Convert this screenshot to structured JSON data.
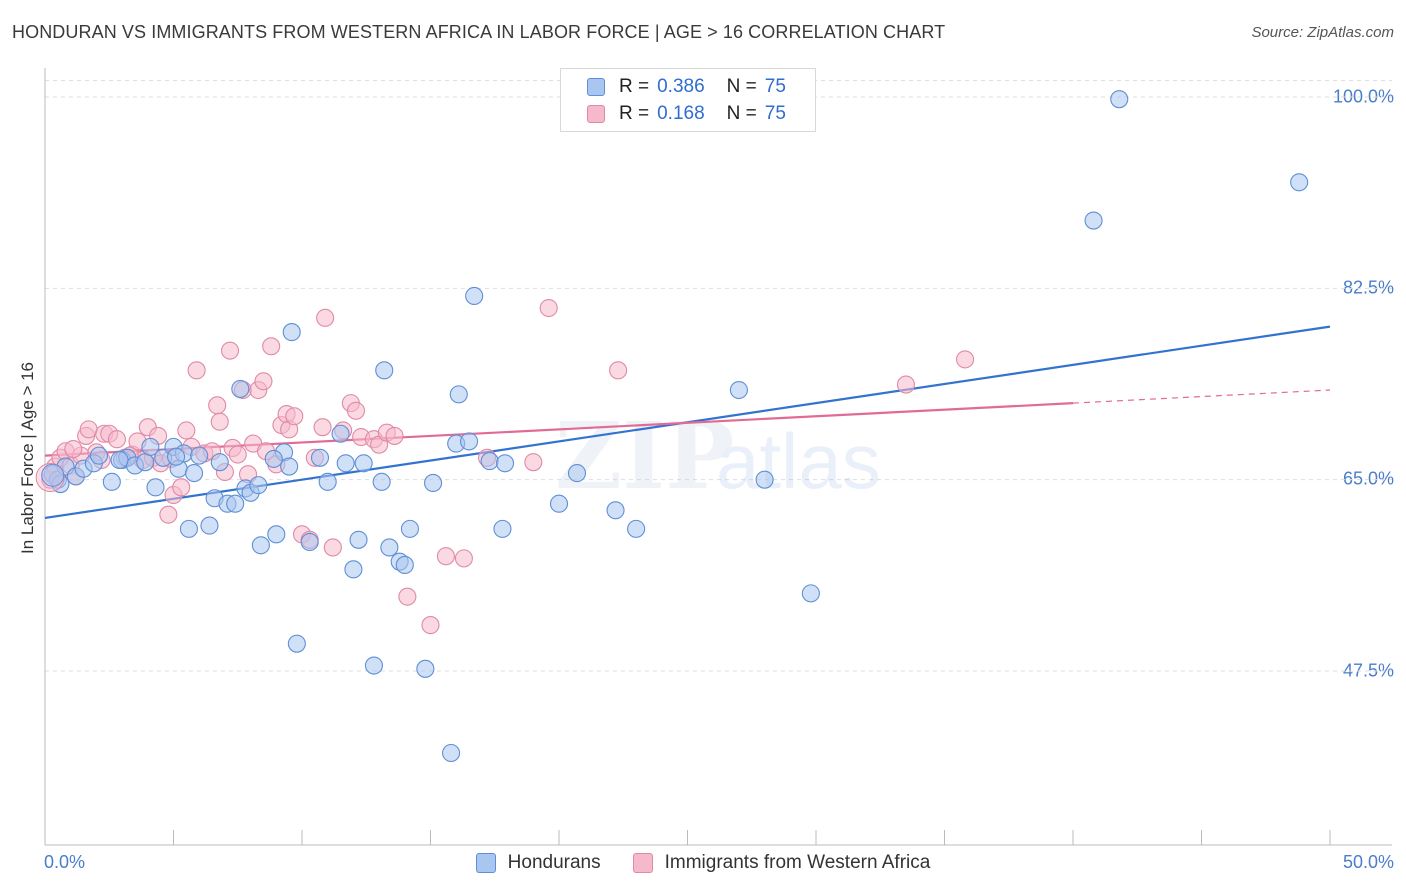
{
  "title": "HONDURAN VS IMMIGRANTS FROM WESTERN AFRICA IN LABOR FORCE | AGE > 16 CORRELATION CHART",
  "source": "Source: ZipAtlas.com",
  "watermark": {
    "zip": "ZIP",
    "atlas": "atlas"
  },
  "colors": {
    "blue_fill": "#a9c6f0",
    "blue_stroke": "#5f8fd6",
    "blue_line": "#3373d0",
    "pink_fill": "#f6b9cc",
    "pink_stroke": "#e08aa6",
    "pink_line": "#e26b96",
    "tick_text": "#4a7dcc",
    "grid": "#dddddd"
  },
  "legend": {
    "rows": [
      {
        "r_label": "R =",
        "r_value": "0.386",
        "n_label": "N =",
        "n_value": "75"
      },
      {
        "r_label": "R =",
        "r_value": "0.168",
        "n_label": "N =",
        "n_value": "75"
      }
    ]
  },
  "chart_data": {
    "type": "scatter",
    "title": "HONDURAN VS IMMIGRANTS FROM WESTERN AFRICA IN LABOR FORCE | AGE > 16 CORRELATION CHART",
    "xlabel": "",
    "ylabel": "In Labor Force | Age > 16",
    "xlim": [
      0,
      50
    ],
    "ylim": [
      34,
      103
    ],
    "x_tick_labels": [
      "0.0%",
      "50.0%"
    ],
    "y_ticks": [
      47.5,
      65.0,
      82.5,
      100.0
    ],
    "y_tick_labels": [
      "47.5%",
      "65.0%",
      "82.5%",
      "100.0%"
    ],
    "legend_position": "top-center",
    "series": [
      {
        "name": "Hondurans",
        "r": 0.386,
        "n": 75,
        "trend": {
          "x0": 0,
          "y0": 61.5,
          "x1": 50,
          "y1": 79.0
        },
        "points": [
          [
            0.3,
            65.5
          ],
          [
            0.5,
            65.0
          ],
          [
            0.6,
            64.6
          ],
          [
            0.8,
            66.2
          ],
          [
            1.2,
            65.3
          ],
          [
            1.5,
            66.0
          ],
          [
            1.9,
            66.5
          ],
          [
            2.1,
            67.2
          ],
          [
            2.6,
            64.8
          ],
          [
            3.0,
            66.8
          ],
          [
            3.2,
            67.0
          ],
          [
            3.5,
            66.3
          ],
          [
            3.9,
            66.6
          ],
          [
            4.1,
            68.0
          ],
          [
            4.3,
            64.3
          ],
          [
            4.6,
            67.0
          ],
          [
            5.0,
            68.0
          ],
          [
            5.2,
            66.0
          ],
          [
            5.4,
            67.4
          ],
          [
            5.6,
            60.5
          ],
          [
            5.8,
            65.6
          ],
          [
            6.0,
            67.2
          ],
          [
            6.4,
            60.8
          ],
          [
            6.6,
            63.3
          ],
          [
            6.8,
            66.6
          ],
          [
            7.1,
            62.8
          ],
          [
            7.4,
            62.8
          ],
          [
            7.6,
            73.3
          ],
          [
            7.8,
            64.2
          ],
          [
            8.0,
            63.8
          ],
          [
            8.3,
            64.5
          ],
          [
            8.4,
            59.0
          ],
          [
            9.0,
            60.0
          ],
          [
            9.3,
            67.5
          ],
          [
            9.5,
            66.2
          ],
          [
            9.6,
            78.5
          ],
          [
            9.8,
            50.0
          ],
          [
            10.3,
            59.3
          ],
          [
            10.7,
            67.0
          ],
          [
            11.0,
            64.8
          ],
          [
            11.5,
            69.2
          ],
          [
            11.7,
            66.5
          ],
          [
            12.0,
            56.8
          ],
          [
            12.2,
            59.5
          ],
          [
            12.4,
            66.5
          ],
          [
            12.8,
            48.0
          ],
          [
            13.1,
            64.8
          ],
          [
            13.2,
            75.0
          ],
          [
            13.4,
            58.8
          ],
          [
            13.8,
            57.5
          ],
          [
            14.0,
            57.2
          ],
          [
            14.2,
            60.5
          ],
          [
            14.8,
            47.7
          ],
          [
            15.1,
            64.7
          ],
          [
            15.8,
            40.0
          ],
          [
            16.0,
            68.3
          ],
          [
            16.1,
            72.8
          ],
          [
            16.5,
            68.5
          ],
          [
            16.7,
            81.8
          ],
          [
            17.3,
            66.7
          ],
          [
            17.8,
            60.5
          ],
          [
            17.9,
            66.5
          ],
          [
            20.0,
            62.8
          ],
          [
            20.7,
            65.6
          ],
          [
            22.2,
            62.2
          ],
          [
            23.0,
            60.5
          ],
          [
            27.0,
            73.2
          ],
          [
            28.0,
            65.0
          ],
          [
            29.8,
            54.6
          ],
          [
            40.8,
            88.7
          ],
          [
            41.8,
            99.8
          ],
          [
            48.8,
            92.2
          ],
          [
            2.9,
            66.8
          ],
          [
            5.1,
            67.1
          ],
          [
            8.9,
            66.9
          ]
        ]
      },
      {
        "name": "Immigrants from Western Africa",
        "r": 0.168,
        "n": 75,
        "trend": {
          "x0": 0,
          "y0": 67.2,
          "x1": 40,
          "y1": 72.0,
          "dash_to_x": 50,
          "dash_to_y": 73.2
        },
        "points": [
          [
            0.2,
            65.0
          ],
          [
            0.4,
            66.2
          ],
          [
            0.6,
            67.0
          ],
          [
            0.8,
            67.6
          ],
          [
            1.0,
            66.3
          ],
          [
            1.2,
            65.3
          ],
          [
            1.4,
            67.2
          ],
          [
            1.6,
            69.0
          ],
          [
            1.7,
            69.6
          ],
          [
            2.0,
            67.5
          ],
          [
            2.2,
            66.8
          ],
          [
            2.3,
            69.2
          ],
          [
            2.5,
            69.2
          ],
          [
            2.8,
            68.7
          ],
          [
            3.1,
            67.0
          ],
          [
            3.4,
            67.3
          ],
          [
            3.6,
            68.5
          ],
          [
            3.8,
            66.8
          ],
          [
            4.0,
            69.8
          ],
          [
            4.2,
            67.0
          ],
          [
            4.4,
            69.0
          ],
          [
            4.5,
            66.5
          ],
          [
            4.8,
            61.8
          ],
          [
            5.0,
            63.6
          ],
          [
            5.3,
            64.3
          ],
          [
            5.5,
            69.5
          ],
          [
            5.7,
            68.0
          ],
          [
            5.9,
            75.0
          ],
          [
            6.2,
            67.4
          ],
          [
            6.5,
            67.6
          ],
          [
            6.7,
            71.8
          ],
          [
            6.8,
            70.3
          ],
          [
            7.0,
            65.7
          ],
          [
            7.2,
            76.8
          ],
          [
            7.3,
            67.9
          ],
          [
            7.5,
            67.3
          ],
          [
            7.7,
            73.2
          ],
          [
            7.9,
            65.5
          ],
          [
            8.1,
            68.3
          ],
          [
            8.3,
            73.2
          ],
          [
            8.5,
            74.0
          ],
          [
            8.6,
            67.6
          ],
          [
            8.8,
            77.2
          ],
          [
            9.0,
            66.4
          ],
          [
            9.2,
            70.0
          ],
          [
            9.4,
            71.0
          ],
          [
            9.5,
            69.6
          ],
          [
            9.7,
            70.8
          ],
          [
            10.0,
            60.0
          ],
          [
            10.3,
            59.5
          ],
          [
            10.5,
            67.0
          ],
          [
            10.8,
            69.8
          ],
          [
            10.9,
            79.8
          ],
          [
            11.2,
            58.8
          ],
          [
            11.6,
            69.5
          ],
          [
            11.9,
            72.0
          ],
          [
            12.1,
            71.3
          ],
          [
            12.3,
            68.9
          ],
          [
            12.8,
            68.7
          ],
          [
            13.0,
            68.2
          ],
          [
            13.3,
            69.3
          ],
          [
            13.6,
            69.0
          ],
          [
            14.1,
            54.3
          ],
          [
            15.0,
            51.7
          ],
          [
            15.6,
            58.0
          ],
          [
            16.3,
            57.8
          ],
          [
            17.2,
            67.0
          ],
          [
            19.0,
            66.6
          ],
          [
            19.6,
            80.7
          ],
          [
            22.3,
            75.0
          ],
          [
            33.5,
            73.7
          ],
          [
            35.8,
            76.0
          ],
          [
            1.1,
            67.8
          ],
          [
            3.3,
            67.2
          ],
          [
            4.9,
            66.9
          ]
        ]
      }
    ]
  }
}
